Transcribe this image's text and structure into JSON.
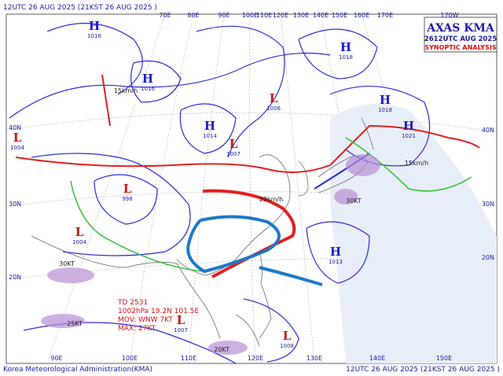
{
  "header": {
    "left": "12UTC 26 AUG 2025 (21KST 26 AUG 2025 )"
  },
  "title_box": {
    "title": "AXAS KMA",
    "time": "2612UTC AUG 2025",
    "subtitle": "SYNOPTIC ANALYSIS"
  },
  "longitudes_top": [
    "70E",
    "80E",
    "90E",
    "100E",
    "110E",
    "120E",
    "130E",
    "140E",
    "150E",
    "160E",
    "170E",
    "170W"
  ],
  "longitudes_bottom": [
    "90E",
    "100E",
    "110E",
    "120E",
    "130E",
    "140E",
    "150E"
  ],
  "latitudes_left": [
    "40N",
    "30N",
    "20N"
  ],
  "latitudes_right": [
    "40N",
    "30N",
    "20N"
  ],
  "pressure_centers": [
    {
      "label": "H",
      "value": "1018"
    },
    {
      "label": "H",
      "value": "1016"
    },
    {
      "label": "H",
      "value": "1014"
    },
    {
      "label": "L",
      "value": "1006"
    },
    {
      "label": "L",
      "value": "1007"
    },
    {
      "label": "L",
      "value": "1004"
    },
    {
      "label": "L",
      "value": "998"
    },
    {
      "label": "L",
      "value": "1004"
    },
    {
      "label": "H",
      "value": "1013"
    },
    {
      "label": "H",
      "value": "1018"
    },
    {
      "label": "H",
      "value": "1021"
    },
    {
      "label": "L",
      "value": "1007"
    },
    {
      "label": "L",
      "value": "1008"
    },
    {
      "label": "H",
      "value": "1016"
    }
  ],
  "motions": [
    "15km/h",
    "29km/h",
    "15km/h",
    "30KT",
    "30KT",
    "25KT",
    "20KT"
  ],
  "typhoon": [
    "TD 2531",
    "1002hPa 19.2N 101.5E",
    "MOV: WNW 7KT",
    "MAX: 27KT"
  ],
  "footer": {
    "left": "Korea Meteorological Administration(KMA)",
    "right": "12UTC 26 AUG 2025 (21KST 26 AUG 2025 )"
  }
}
